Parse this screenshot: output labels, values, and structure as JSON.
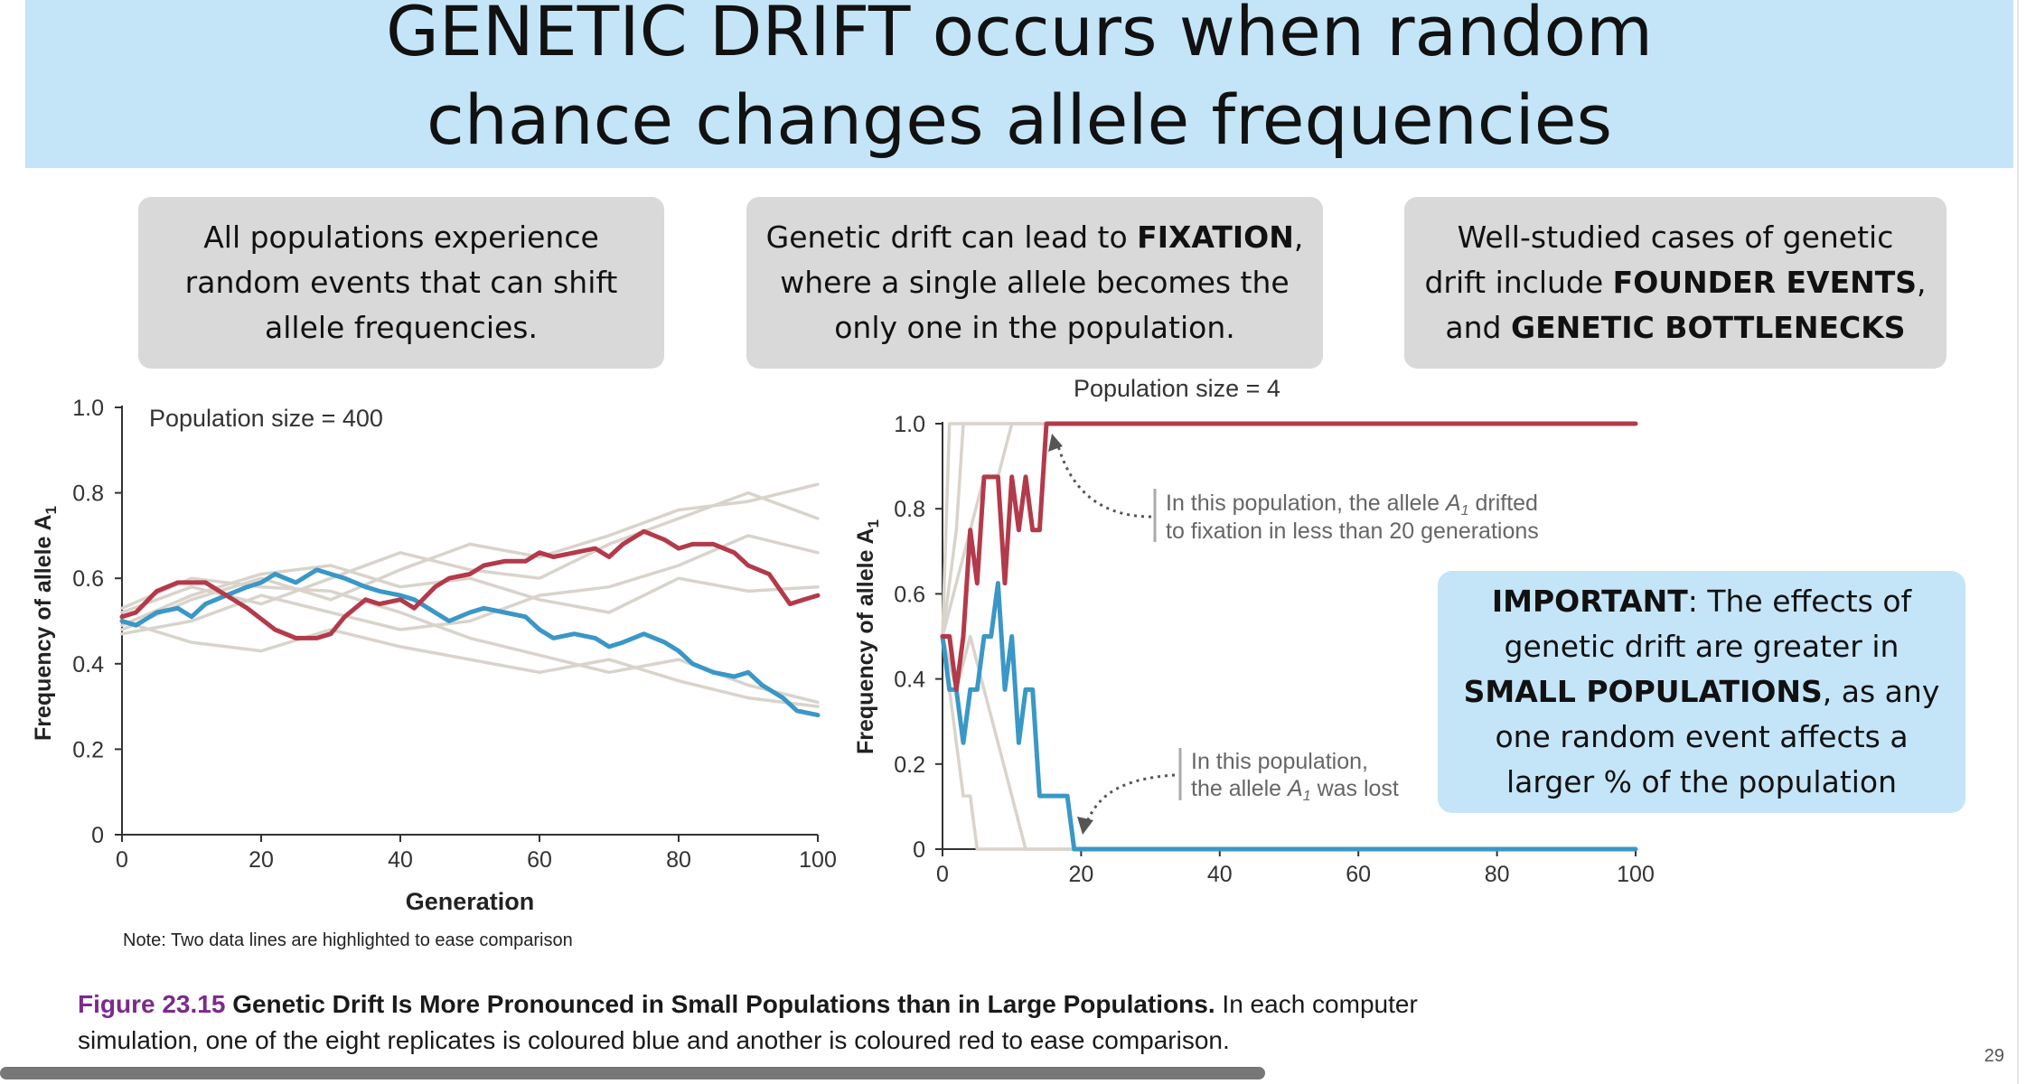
{
  "title": {
    "line1": "GENETIC DRIFT occurs when random",
    "line2": "chance changes allele frequencies"
  },
  "boxes": {
    "left": {
      "text": "All populations experience random events that can shift allele frequencies."
    },
    "middle": {
      "pre": "Genetic drift can lead to ",
      "bold": "FIXATION",
      "post": ", where a single allele becomes the only one in the population."
    },
    "right": {
      "pre": "Well-studied cases of genetic drift include ",
      "bold1": "FOUNDER EVENTS",
      "mid": ", and ",
      "bold2": "GENETIC BOTTLENECKS"
    }
  },
  "important": {
    "bold1": "IMPORTANT",
    "t1": ": The effects of genetic drift are greater in ",
    "bold2": "SMALL POPULATIONS",
    "t2": ", as any one random event affects a larger % of the population"
  },
  "note": "Note: Two data lines are highlighted to ease comparison",
  "caption": {
    "fig": "Figure 23.15",
    "bold": "Genetic Drift Is More Pronounced in Small Populations than in Large Populations.",
    "rest": " In each computer simulation, one of the eight replicates is coloured blue and another is coloured red to ease comparison."
  },
  "page_number": "29",
  "colors": {
    "red": "#b33a4a",
    "blue": "#3a97c6",
    "grey": "#d9d3cb",
    "title_band": "#c4e5f8",
    "box": "#d9d9d9",
    "caption_fig": "#7b2a8c"
  },
  "chart_data": [
    {
      "type": "line",
      "title": "Population size = 400",
      "xlabel": "Generation",
      "ylabel": "Frequency of allele A",
      "ylabel_sub": "1",
      "xlim": [
        0,
        100
      ],
      "ylim": [
        0,
        1
      ],
      "xticks": [
        "0",
        "20",
        "40",
        "60",
        "80",
        "100"
      ],
      "yticks": [
        "0",
        "0.2",
        "0.4",
        "0.6",
        "0.8",
        "1.0"
      ],
      "series": [
        {
          "color": "red",
          "x": [
            0,
            2,
            5,
            8,
            12,
            15,
            18,
            22,
            25,
            28,
            30,
            32,
            35,
            37,
            40,
            42,
            45,
            47,
            50,
            52,
            55,
            58,
            60,
            62,
            65,
            68,
            70,
            72,
            75,
            78,
            80,
            82,
            85,
            88,
            90,
            93,
            96,
            98,
            100
          ],
          "y": [
            0.51,
            0.52,
            0.57,
            0.59,
            0.59,
            0.56,
            0.53,
            0.48,
            0.46,
            0.46,
            0.47,
            0.51,
            0.55,
            0.54,
            0.55,
            0.53,
            0.58,
            0.6,
            0.61,
            0.63,
            0.64,
            0.64,
            0.66,
            0.65,
            0.66,
            0.67,
            0.65,
            0.68,
            0.71,
            0.69,
            0.67,
            0.68,
            0.68,
            0.66,
            0.63,
            0.61,
            0.54,
            0.55,
            0.56
          ]
        },
        {
          "color": "blue",
          "x": [
            0,
            2,
            5,
            8,
            10,
            12,
            15,
            18,
            20,
            22,
            25,
            28,
            30,
            32,
            35,
            37,
            40,
            42,
            45,
            47,
            50,
            52,
            55,
            58,
            60,
            62,
            65,
            68,
            70,
            72,
            75,
            78,
            80,
            82,
            85,
            88,
            90,
            92,
            95,
            97,
            100
          ],
          "y": [
            0.5,
            0.49,
            0.52,
            0.53,
            0.51,
            0.54,
            0.56,
            0.58,
            0.59,
            0.61,
            0.59,
            0.62,
            0.61,
            0.6,
            0.58,
            0.57,
            0.56,
            0.55,
            0.52,
            0.5,
            0.52,
            0.53,
            0.52,
            0.51,
            0.48,
            0.46,
            0.47,
            0.46,
            0.44,
            0.45,
            0.47,
            0.45,
            0.43,
            0.4,
            0.38,
            0.37,
            0.38,
            0.35,
            0.32,
            0.29,
            0.28
          ]
        },
        {
          "color": "grey",
          "x": [
            0,
            10,
            20,
            30,
            40,
            50,
            60,
            70,
            80,
            90,
            100
          ],
          "y": [
            0.48,
            0.55,
            0.6,
            0.55,
            0.62,
            0.68,
            0.65,
            0.7,
            0.76,
            0.78,
            0.82
          ]
        },
        {
          "color": "grey",
          "x": [
            0,
            10,
            20,
            30,
            40,
            50,
            60,
            70,
            80,
            90,
            100
          ],
          "y": [
            0.52,
            0.58,
            0.54,
            0.6,
            0.66,
            0.62,
            0.6,
            0.68,
            0.74,
            0.8,
            0.74
          ]
        },
        {
          "color": "grey",
          "x": [
            0,
            10,
            20,
            30,
            40,
            50,
            60,
            70,
            80,
            90,
            100
          ],
          "y": [
            0.47,
            0.5,
            0.56,
            0.52,
            0.48,
            0.5,
            0.56,
            0.58,
            0.63,
            0.7,
            0.66
          ]
        },
        {
          "color": "grey",
          "x": [
            0,
            10,
            20,
            30,
            40,
            50,
            60,
            70,
            80,
            90,
            100
          ],
          "y": [
            0.5,
            0.45,
            0.43,
            0.48,
            0.44,
            0.41,
            0.38,
            0.41,
            0.36,
            0.32,
            0.3
          ]
        },
        {
          "color": "grey",
          "x": [
            0,
            10,
            20,
            30,
            40,
            50,
            60,
            70,
            80,
            90,
            100
          ],
          "y": [
            0.53,
            0.6,
            0.58,
            0.57,
            0.52,
            0.46,
            0.42,
            0.38,
            0.41,
            0.35,
            0.31
          ]
        },
        {
          "color": "grey",
          "x": [
            0,
            10,
            20,
            30,
            40,
            50,
            60,
            70,
            80,
            90,
            100
          ],
          "y": [
            0.49,
            0.56,
            0.61,
            0.63,
            0.58,
            0.6,
            0.55,
            0.52,
            0.6,
            0.57,
            0.58
          ]
        }
      ]
    },
    {
      "type": "line",
      "title": "Population size = 4",
      "xlabel": "",
      "ylabel": "Frequency of allele A",
      "ylabel_sub": "1",
      "xlim": [
        0,
        100
      ],
      "ylim": [
        0,
        1
      ],
      "xticks": [
        "0",
        "20",
        "40",
        "60",
        "80",
        "100"
      ],
      "yticks": [
        "0",
        "0.2",
        "0.4",
        "0.6",
        "0.8",
        "1.0"
      ],
      "series": [
        {
          "color": "red",
          "x": [
            0,
            1,
            2,
            3,
            4,
            5,
            6,
            7,
            8,
            9,
            10,
            11,
            12,
            13,
            14,
            15,
            16,
            100
          ],
          "y": [
            0.5,
            0.5,
            0.375,
            0.5,
            0.75,
            0.625,
            0.875,
            0.875,
            0.875,
            0.625,
            0.875,
            0.75,
            0.875,
            0.75,
            0.75,
            1.0,
            1.0,
            1.0
          ]
        },
        {
          "color": "blue",
          "x": [
            0,
            1,
            2,
            3,
            4,
            5,
            6,
            7,
            8,
            9,
            10,
            11,
            12,
            13,
            14,
            15,
            16,
            17,
            18,
            19,
            20,
            100
          ],
          "y": [
            0.5,
            0.375,
            0.375,
            0.25,
            0.375,
            0.375,
            0.5,
            0.5,
            0.625,
            0.375,
            0.5,
            0.25,
            0.375,
            0.375,
            0.125,
            0.125,
            0.125,
            0.125,
            0.125,
            0.0,
            0.0,
            0.0
          ]
        },
        {
          "color": "grey",
          "x": [
            0,
            1,
            2,
            3,
            4,
            5,
            6,
            7,
            8,
            9,
            10,
            100
          ],
          "y": [
            0.5,
            0.625,
            0.75,
            1.0,
            1.0,
            1.0,
            1.0,
            1.0,
            1.0,
            1.0,
            1.0,
            1.0
          ]
        },
        {
          "color": "grey",
          "x": [
            0,
            1,
            2,
            3,
            4,
            5,
            6,
            100
          ],
          "y": [
            0.5,
            0.375,
            0.25,
            0.125,
            0.125,
            0.0,
            0.0,
            0.0
          ]
        },
        {
          "color": "grey",
          "x": [
            0,
            2,
            4,
            6,
            8,
            10,
            12,
            14,
            100
          ],
          "y": [
            0.5,
            0.625,
            0.75,
            0.875,
            0.875,
            1.0,
            1.0,
            1.0,
            1.0
          ]
        },
        {
          "color": "grey",
          "x": [
            0,
            2,
            4,
            6,
            8,
            10,
            12,
            14,
            100
          ],
          "y": [
            0.5,
            0.375,
            0.5,
            0.375,
            0.25,
            0.125,
            0.0,
            0.0,
            0.0
          ]
        },
        {
          "color": "grey",
          "x": [
            0,
            1,
            2,
            100
          ],
          "y": [
            0.5,
            1.0,
            1.0,
            1.0
          ]
        }
      ],
      "annotations": [
        {
          "pre": "In this population, the allele ",
          "italic": "A",
          "sub": "1",
          "post": " drifted",
          "line2": "to fixation in less than 20 generations"
        },
        {
          "line1": "In this population,",
          "pre": "the allele ",
          "italic": "A",
          "sub": "1",
          "post": " was lost"
        }
      ]
    }
  ]
}
